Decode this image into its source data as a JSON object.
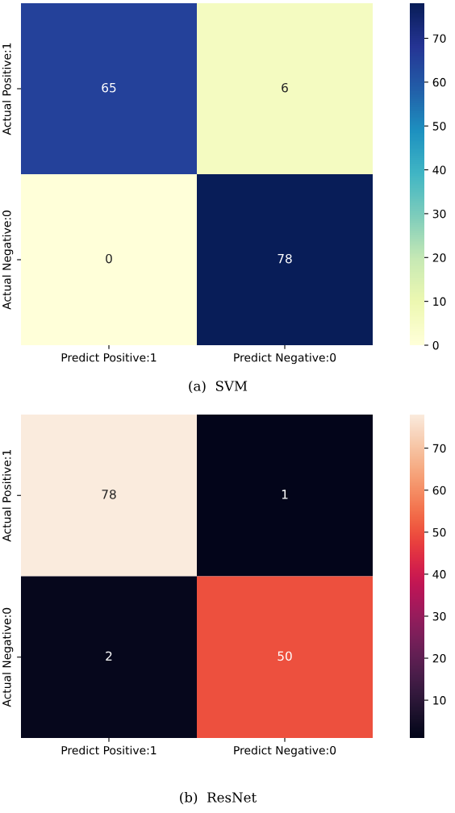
{
  "chart_data": [
    {
      "type": "heatmap",
      "categories": [
        "Predict Positive:1",
        "Predict Negative:0"
      ],
      "y_categories": [
        "Actual Positive:1",
        "Actual Negative:0"
      ],
      "cells": [
        [
          65,
          6
        ],
        [
          0,
          78
        ]
      ],
      "clim": [
        0,
        78
      ],
      "cticks": [
        0,
        10,
        20,
        30,
        40,
        50,
        60,
        70
      ],
      "data_labels": true,
      "annotations": [
        "(a)  SVM"
      ]
    },
    {
      "type": "heatmap",
      "categories": [
        "Predict Positive:1",
        "Predict Negative:0"
      ],
      "y_categories": [
        "Actual Positive:1",
        "Actual Negative:0"
      ],
      "cells": [
        [
          78,
          1
        ],
        [
          2,
          50
        ]
      ],
      "clim": [
        1,
        78
      ],
      "cticks": [
        10,
        20,
        30,
        40,
        50,
        60,
        70
      ],
      "data_labels": true,
      "annotations": [
        "(b)  ResNet"
      ]
    }
  ]
}
